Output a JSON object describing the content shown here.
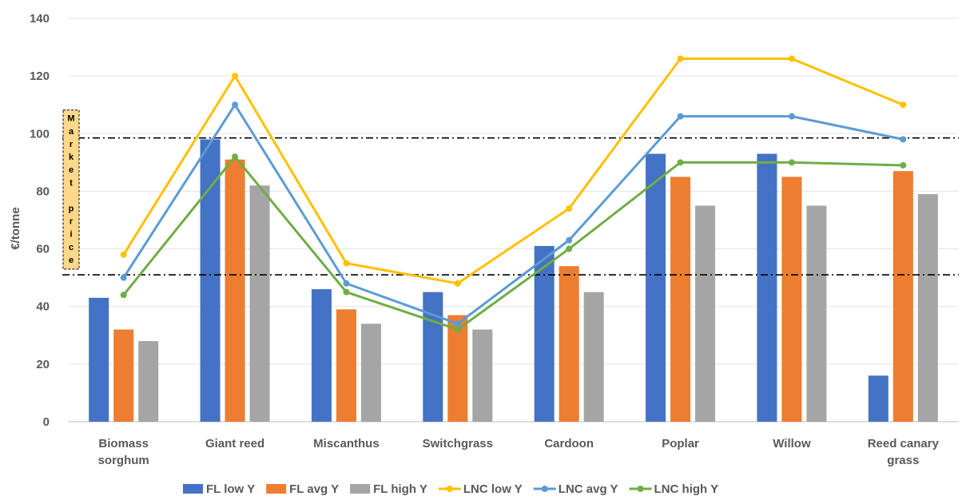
{
  "chart_data": {
    "type": "bar",
    "ylabel": "€/tonne",
    "ylim": [
      0,
      140
    ],
    "yticks": [
      0,
      20,
      40,
      60,
      80,
      100,
      120,
      140
    ],
    "categories": [
      [
        "Biomass",
        "sorghum"
      ],
      [
        "Giant reed"
      ],
      [
        "Miscanthus"
      ],
      [
        "Switchgrass"
      ],
      [
        "Cardoon"
      ],
      [
        "Poplar"
      ],
      [
        "Willow"
      ],
      [
        "Reed canary",
        "grass"
      ]
    ],
    "bar_series": [
      {
        "name": "FL low Y",
        "color": "#4472C4",
        "values": [
          43,
          98,
          46,
          45,
          61,
          93,
          93,
          16
        ]
      },
      {
        "name": "FL avg Y",
        "color": "#ED7D31",
        "values": [
          32,
          91,
          39,
          37,
          54,
          85,
          85,
          87
        ]
      },
      {
        "name": "FL high Y",
        "color": "#A5A5A5",
        "values": [
          28,
          82,
          34,
          32,
          45,
          75,
          75,
          79
        ]
      }
    ],
    "line_series": [
      {
        "name": "LNC low Y",
        "color": "#FFC000",
        "values": [
          58,
          120,
          55,
          48,
          74,
          126,
          126,
          110
        ]
      },
      {
        "name": "LNC avg Y",
        "color": "#5B9BD5",
        "values": [
          50,
          110,
          48,
          34,
          63,
          106,
          106,
          98
        ]
      },
      {
        "name": "LNC high Y",
        "color": "#70AD47",
        "values": [
          44,
          92,
          45,
          32,
          60,
          90,
          90,
          89
        ]
      }
    ],
    "reference_lines": [
      51,
      98.5
    ],
    "market_price_label": "Market price",
    "grid": true,
    "legend_position": "bottom"
  }
}
